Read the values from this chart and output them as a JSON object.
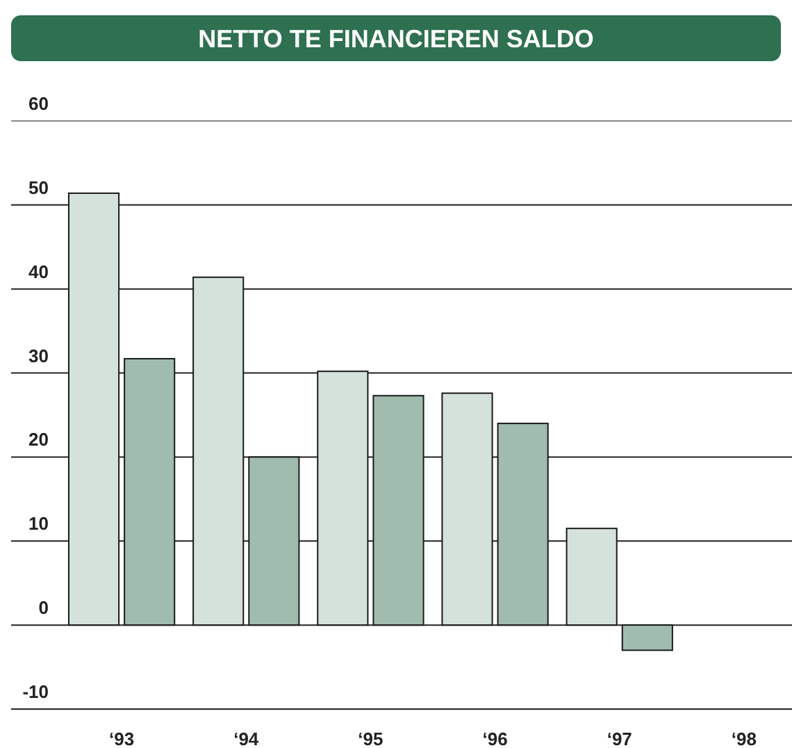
{
  "chart_data": {
    "type": "bar",
    "title": "NETTO TE FINANCIEREN SALDO",
    "categories": [
      "‘93",
      "‘94",
      "‘95",
      "‘96",
      "‘97",
      "‘98"
    ],
    "series": [
      {
        "color": "#d5e2db",
        "values": [
          51.4,
          41.4,
          30.2,
          27.6,
          11.5,
          null
        ]
      },
      {
        "color": "#a0bcaf",
        "values": [
          31.7,
          20,
          27.3,
          24,
          -3,
          null
        ]
      }
    ],
    "ylim": [
      -10,
      60
    ],
    "yticks": [
      -10,
      0,
      10,
      20,
      30,
      40,
      50,
      60
    ],
    "grid": "y"
  }
}
